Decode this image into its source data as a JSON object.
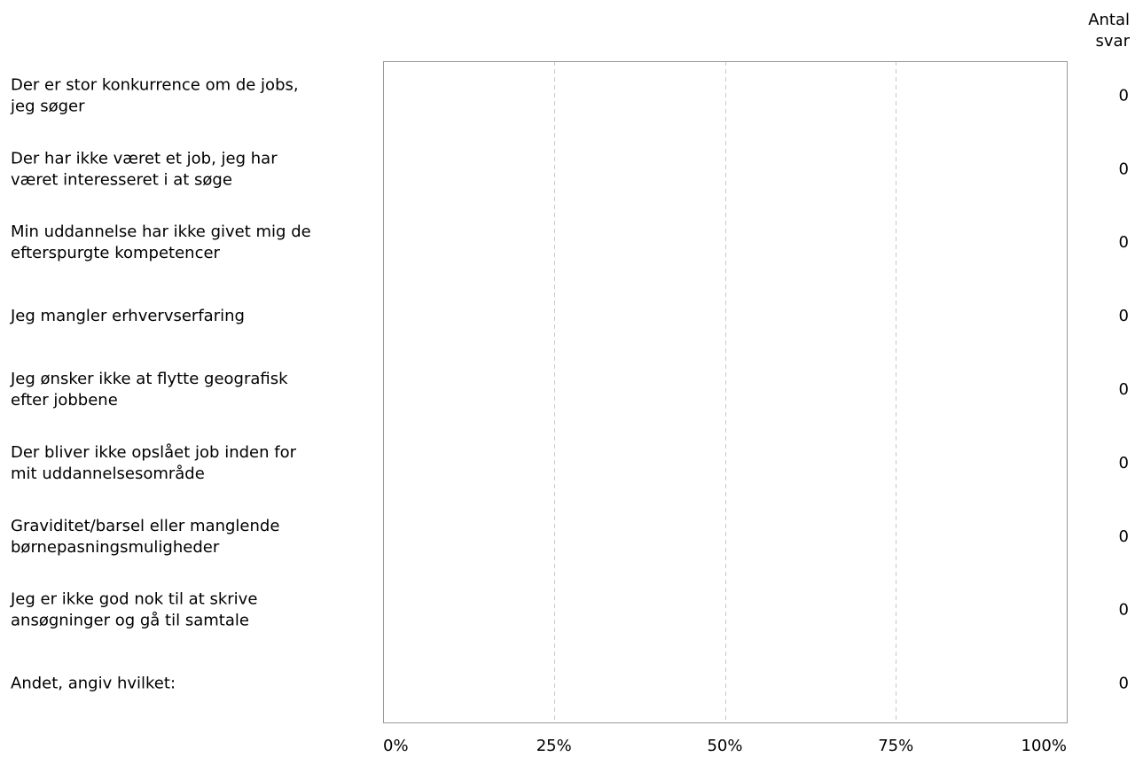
{
  "chart_data": {
    "type": "bar",
    "orientation": "horizontal",
    "categories": [
      [
        "Der er stor konkurrence om de jobs,",
        "jeg søger"
      ],
      [
        "Der har ikke været et job, jeg har",
        "været interesseret i at søge"
      ],
      [
        "Min uddannelse har ikke givet mig de",
        "efterspurgte kompetencer"
      ],
      [
        "Jeg mangler erhvervserfaring"
      ],
      [
        "Jeg ønsker ikke at flytte geografisk",
        "efter jobbene"
      ],
      [
        "Der bliver ikke opslået job inden for",
        "mit uddannelsesområde"
      ],
      [
        "Graviditet/barsel eller manglende",
        "børnepasningsmuligheder"
      ],
      [
        "Jeg er ikke god nok til at skrive",
        "ansøgninger og gå til samtale"
      ],
      [
        "Andet, angiv hvilket:"
      ]
    ],
    "values": [
      0,
      0,
      0,
      0,
      0,
      0,
      0,
      0,
      0
    ],
    "counts": [
      "0",
      "0",
      "0",
      "0",
      "0",
      "0",
      "0",
      "0",
      "0"
    ],
    "count_header": [
      "Antal",
      "svar"
    ],
    "x_ticks": [
      "0%",
      "25%",
      "50%",
      "75%",
      "100%"
    ],
    "xlim": [
      0,
      100
    ],
    "grid": true,
    "colors": {
      "axis": "#999999",
      "grid": "#c8c8c8",
      "bar": "#4f81bd"
    }
  }
}
